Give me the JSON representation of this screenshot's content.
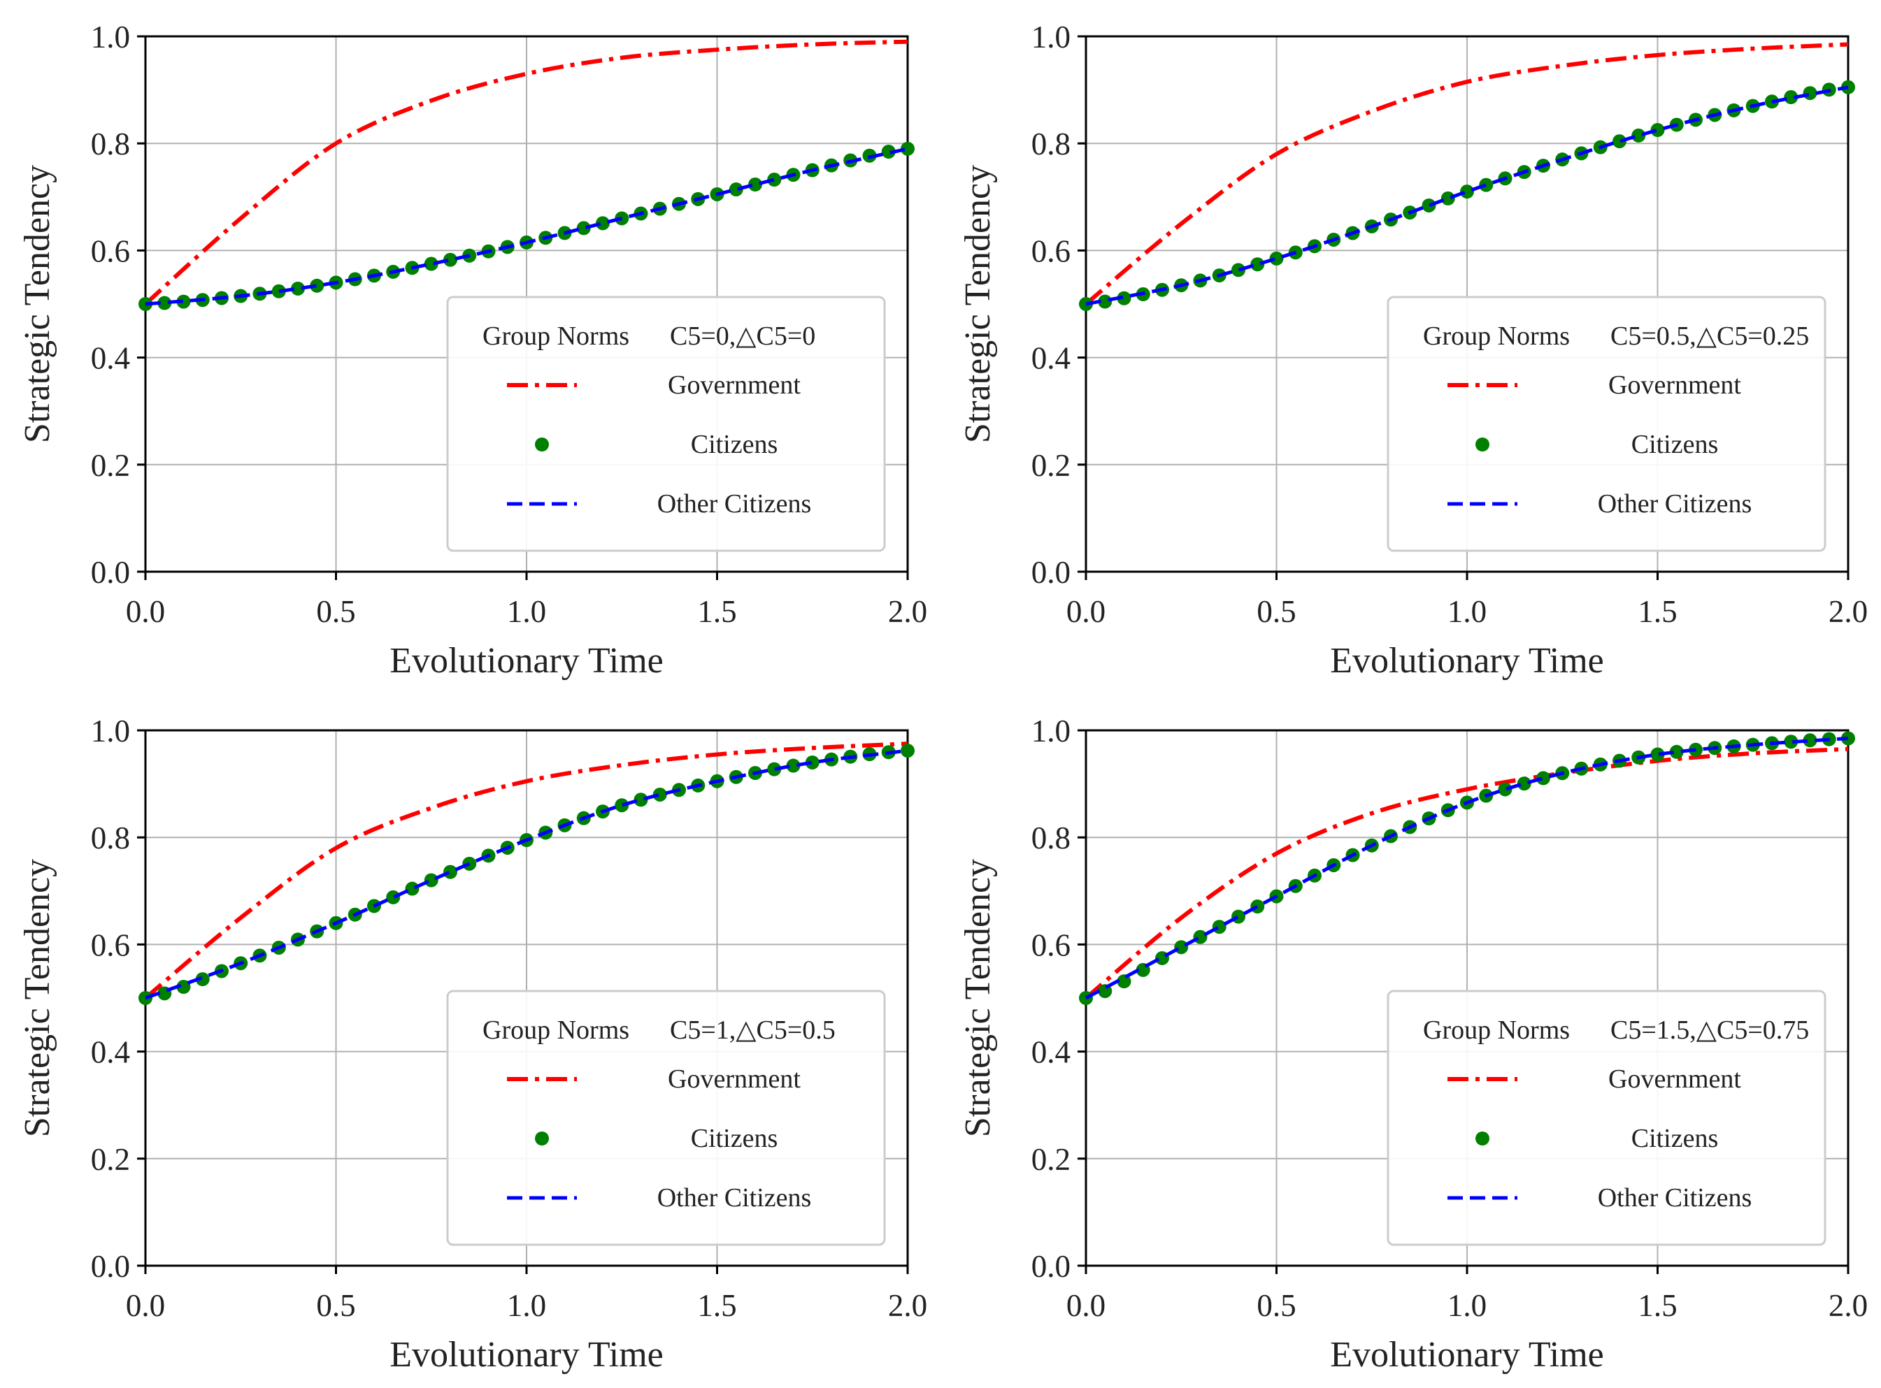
{
  "chart_data": [
    {
      "type": "line",
      "xlabel": "Evolutionary Time",
      "ylabel": "Strategic Tendency",
      "xlim": [
        0,
        2
      ],
      "ylim": [
        0,
        1
      ],
      "xticks": [
        "0.0",
        "0.5",
        "1.0",
        "1.5",
        "2.0"
      ],
      "yticks": [
        "0.0",
        "0.2",
        "0.4",
        "0.6",
        "0.8",
        "1.0"
      ],
      "grid": true,
      "legend_position": "lower-right",
      "legend": {
        "group_label": "Group Norms",
        "params": "C5=0,△C5=0",
        "entries": [
          "Government",
          "Citizens",
          "Other Citizens"
        ]
      },
      "x": [
        0.0,
        0.25,
        0.5,
        0.75,
        1.0,
        1.25,
        1.5,
        1.75,
        2.0
      ],
      "series": [
        {
          "name": "Government",
          "values": [
            0.5,
            0.66,
            0.8,
            0.88,
            0.93,
            0.96,
            0.975,
            0.985,
            0.99
          ]
        },
        {
          "name": "Citizens",
          "values": [
            0.5,
            0.515,
            0.54,
            0.575,
            0.615,
            0.66,
            0.705,
            0.75,
            0.79
          ]
        },
        {
          "name": "Other Citizens",
          "values": [
            0.5,
            0.515,
            0.54,
            0.575,
            0.615,
            0.66,
            0.705,
            0.75,
            0.79
          ]
        }
      ]
    },
    {
      "type": "line",
      "xlabel": "Evolutionary Time",
      "ylabel": "Strategic Tendency",
      "xlim": [
        0,
        2
      ],
      "ylim": [
        0,
        1
      ],
      "xticks": [
        "0.0",
        "0.5",
        "1.0",
        "1.5",
        "2.0"
      ],
      "yticks": [
        "0.0",
        "0.2",
        "0.4",
        "0.6",
        "0.8",
        "1.0"
      ],
      "grid": true,
      "legend_position": "lower-right",
      "legend": {
        "group_label": "Group Norms",
        "params": "C5=0.5,△C5=0.25",
        "entries": [
          "Government",
          "Citizens",
          "Other Citizens"
        ]
      },
      "x": [
        0.0,
        0.25,
        0.5,
        0.75,
        1.0,
        1.25,
        1.5,
        1.75,
        2.0
      ],
      "series": [
        {
          "name": "Government",
          "values": [
            0.5,
            0.65,
            0.78,
            0.86,
            0.915,
            0.945,
            0.965,
            0.977,
            0.985
          ]
        },
        {
          "name": "Citizens",
          "values": [
            0.5,
            0.535,
            0.585,
            0.645,
            0.71,
            0.77,
            0.825,
            0.87,
            0.905
          ]
        },
        {
          "name": "Other Citizens",
          "values": [
            0.5,
            0.535,
            0.585,
            0.645,
            0.71,
            0.77,
            0.825,
            0.87,
            0.905
          ]
        }
      ]
    },
    {
      "type": "line",
      "xlabel": "Evolutionary Time",
      "ylabel": "Strategic Tendency",
      "xlim": [
        0,
        2
      ],
      "ylim": [
        0,
        1
      ],
      "xticks": [
        "0.0",
        "0.5",
        "1.0",
        "1.5",
        "2.0"
      ],
      "yticks": [
        "0.0",
        "0.2",
        "0.4",
        "0.6",
        "0.8",
        "1.0"
      ],
      "grid": true,
      "legend_position": "lower-right",
      "legend": {
        "group_label": "Group Norms",
        "params": "C5=1,△C5=0.5",
        "entries": [
          "Government",
          "Citizens",
          "Other Citizens"
        ]
      },
      "x": [
        0.0,
        0.25,
        0.5,
        0.75,
        1.0,
        1.25,
        1.5,
        1.75,
        2.0
      ],
      "series": [
        {
          "name": "Government",
          "values": [
            0.5,
            0.65,
            0.78,
            0.855,
            0.905,
            0.935,
            0.955,
            0.967,
            0.975
          ]
        },
        {
          "name": "Citizens",
          "values": [
            0.5,
            0.565,
            0.64,
            0.72,
            0.795,
            0.86,
            0.905,
            0.94,
            0.962
          ]
        },
        {
          "name": "Other Citizens",
          "values": [
            0.5,
            0.565,
            0.64,
            0.72,
            0.795,
            0.86,
            0.905,
            0.94,
            0.962
          ]
        }
      ]
    },
    {
      "type": "line",
      "xlabel": "Evolutionary Time",
      "ylabel": "Strategic Tendency",
      "xlim": [
        0,
        2
      ],
      "ylim": [
        0,
        1
      ],
      "xticks": [
        "0.0",
        "0.5",
        "1.0",
        "1.5",
        "2.0"
      ],
      "yticks": [
        "0.0",
        "0.2",
        "0.4",
        "0.6",
        "0.8",
        "1.0"
      ],
      "grid": true,
      "legend_position": "lower-right",
      "legend": {
        "group_label": "Group Norms",
        "params": "C5=1.5,△C5=0.75",
        "entries": [
          "Government",
          "Citizens",
          "Other Citizens"
        ]
      },
      "x": [
        0.0,
        0.25,
        0.5,
        0.75,
        1.0,
        1.25,
        1.5,
        1.75,
        2.0
      ],
      "series": [
        {
          "name": "Government",
          "values": [
            0.5,
            0.65,
            0.77,
            0.845,
            0.89,
            0.92,
            0.943,
            0.957,
            0.965
          ]
        },
        {
          "name": "Citizens",
          "values": [
            0.5,
            0.595,
            0.69,
            0.785,
            0.865,
            0.92,
            0.955,
            0.973,
            0.985
          ]
        },
        {
          "name": "Other Citizens",
          "values": [
            0.5,
            0.595,
            0.69,
            0.785,
            0.865,
            0.92,
            0.955,
            0.973,
            0.985
          ]
        }
      ]
    }
  ],
  "colors": {
    "government": "#ff0000",
    "citizens": "#008000",
    "other_citizens": "#0000ff",
    "grid": "#b0b0b0",
    "axis": "#000000",
    "legend_border": "#cccccc"
  }
}
